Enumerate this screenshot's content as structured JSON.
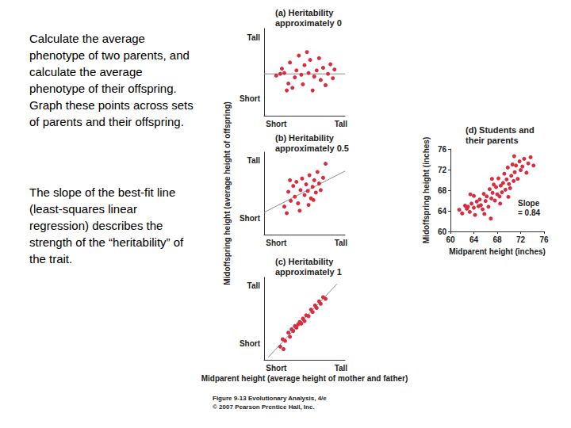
{
  "text": {
    "paragraphs": [
      "Calculate the average phenotype of two parents, and calculate the average phenotype of their offspring. Graph these points across sets of parents and their offspring.",
      "The slope of the best-fit line (least-squares linear regression) describes the strength of the “heritability” of the trait."
    ]
  },
  "chart_data": [
    {
      "type": "scatter",
      "title": "(a) Heritability approximately 0",
      "xlim": [
        0,
        10
      ],
      "ylim": [
        0,
        10
      ],
      "xticks": [
        {
          "value": 1.5,
          "label": "Short"
        },
        {
          "value": 9.5,
          "label": "Tall"
        }
      ],
      "yticks": [
        {
          "value": 2,
          "label": "Short"
        },
        {
          "value": 9,
          "label": "Tall"
        }
      ],
      "grid": false,
      "series": [
        {
          "type": "scatter",
          "color": "#d92d3f",
          "marker": "circle",
          "values": [
            [
              1.5,
              4.6
            ],
            [
              2,
              4.8
            ],
            [
              2.5,
              4.9
            ],
            [
              2.2,
              5.4
            ],
            [
              3,
              3.7
            ],
            [
              3.2,
              6.1
            ],
            [
              3.8,
              4.4
            ],
            [
              4,
              5.2
            ],
            [
              4.3,
              6.9
            ],
            [
              4.6,
              4.7
            ],
            [
              4.8,
              3.6
            ],
            [
              5,
              5.8
            ],
            [
              5.3,
              7.3
            ],
            [
              5.5,
              4.9
            ],
            [
              5.7,
              6.4
            ],
            [
              6,
              2.9
            ],
            [
              6.2,
              4.5
            ],
            [
              6.5,
              5.2
            ],
            [
              6.8,
              6.6
            ],
            [
              7,
              4.1
            ],
            [
              7.3,
              5.5
            ],
            [
              7.6,
              3.5
            ],
            [
              7.9,
              4.8
            ],
            [
              8.2,
              5.9
            ],
            [
              8.5,
              4.3
            ],
            [
              2.8,
              2.9
            ],
            [
              3.5,
              3.2
            ],
            [
              8.7,
              5.3
            ]
          ]
        },
        {
          "type": "line",
          "color": "#8c8c8c",
          "line_style": "solid",
          "values": [
            [
              0,
              4.8
            ],
            [
              10,
              4.8
            ]
          ]
        }
      ]
    },
    {
      "type": "scatter",
      "title": "(b) Heritability approximately 0.5",
      "ylabel": "Midoffspring height (average height of offspring)",
      "xlim": [
        0,
        10
      ],
      "ylim": [
        0,
        10
      ],
      "xticks": [
        {
          "value": 1.5,
          "label": "Short"
        },
        {
          "value": 9.5,
          "label": "Tall"
        }
      ],
      "yticks": [
        {
          "value": 2,
          "label": "Short"
        },
        {
          "value": 9,
          "label": "Tall"
        }
      ],
      "grid": false,
      "series": [
        {
          "type": "scatter",
          "color": "#d92d3f",
          "marker": "circle",
          "values": [
            [
              2.5,
              3.4
            ],
            [
              3,
              5.2
            ],
            [
              3.3,
              4.1
            ],
            [
              3.6,
              5.9
            ],
            [
              3.8,
              4.6
            ],
            [
              4,
              6.4
            ],
            [
              4.2,
              3.8
            ],
            [
              4.5,
              5.4
            ],
            [
              4.7,
              6.8
            ],
            [
              5,
              4.8
            ],
            [
              5.2,
              6.1
            ],
            [
              5.4,
              5.3
            ],
            [
              5.6,
              7.2
            ],
            [
              5.8,
              4.4
            ],
            [
              6,
              5.8
            ],
            [
              6.2,
              6.6
            ],
            [
              6.4,
              5.1
            ],
            [
              6.6,
              7.6
            ],
            [
              6.8,
              6.2
            ],
            [
              7,
              5.4
            ],
            [
              7.3,
              6.9
            ],
            [
              7.6,
              8.6
            ],
            [
              4.4,
              2.9
            ],
            [
              5.5,
              3.6
            ],
            [
              3.2,
              6.6
            ],
            [
              6.1,
              4.2
            ],
            [
              2.8,
              2.6
            ]
          ]
        },
        {
          "type": "line",
          "color": "#8c8c8c",
          "line_style": "solid",
          "values": [
            [
              0,
              2.7
            ],
            [
              10,
              7.7
            ]
          ]
        }
      ]
    },
    {
      "type": "scatter",
      "title": "(c) Heritability approximately 1",
      "xlabel": "Midparent height (average height of mother and father)",
      "xlim": [
        0,
        10
      ],
      "ylim": [
        0,
        10
      ],
      "xticks": [
        {
          "value": 1.5,
          "label": "Short"
        },
        {
          "value": 9.5,
          "label": "Tall"
        }
      ],
      "yticks": [
        {
          "value": 2,
          "label": "Short"
        },
        {
          "value": 9,
          "label": "Tall"
        }
      ],
      "grid": false,
      "series": [
        {
          "type": "scatter",
          "color": "#d92d3f",
          "marker": "circle",
          "values": [
            [
              2,
              1.6
            ],
            [
              2.3,
              2.5
            ],
            [
              2.6,
              2.3
            ],
            [
              3,
              3.3
            ],
            [
              3.2,
              2.8
            ],
            [
              3.4,
              3.7
            ],
            [
              3.6,
              3.5
            ],
            [
              3.8,
              4.1
            ],
            [
              4,
              3.9
            ],
            [
              4.2,
              4.3
            ],
            [
              4.4,
              4.6
            ],
            [
              4.6,
              4.4
            ],
            [
              4.8,
              5.0
            ],
            [
              5,
              4.7
            ],
            [
              5.2,
              5.4
            ],
            [
              5.5,
              5.3
            ],
            [
              5.8,
              6.1
            ],
            [
              6,
              5.8
            ],
            [
              6.3,
              6.6
            ],
            [
              6.5,
              6.3
            ],
            [
              6.8,
              7.1
            ],
            [
              7,
              6.8
            ],
            [
              7.3,
              7.6
            ],
            [
              7.6,
              7.4
            ],
            [
              2.4,
              1.3
            ]
          ]
        },
        {
          "type": "line",
          "color": "#8c8c8c",
          "line_style": "solid",
          "values": [
            [
              0.5,
              0.3
            ],
            [
              9,
              9.2
            ]
          ]
        }
      ]
    },
    {
      "type": "scatter",
      "title": "(d) Students and their parents",
      "xlabel": "Midparent height (inches)",
      "ylabel": "Midoffspring height (inches)",
      "annotation": "Slope = 0.84",
      "xlim": [
        60,
        76
      ],
      "ylim": [
        60,
        76
      ],
      "xticks": [
        60,
        64,
        68,
        72,
        76
      ],
      "yticks": [
        60,
        64,
        68,
        72,
        76
      ],
      "grid": false,
      "series": [
        {
          "type": "scatter",
          "color": "#d92d3f",
          "marker": "circle",
          "values": [
            [
              61.5,
              64.2
            ],
            [
              62,
              63.5
            ],
            [
              62.5,
              65
            ],
            [
              62.8,
              64.4
            ],
            [
              63,
              64.8
            ],
            [
              63.3,
              63.8
            ],
            [
              63.6,
              65.4
            ],
            [
              64,
              64.6
            ],
            [
              64.2,
              63.2
            ],
            [
              64.5,
              65.8
            ],
            [
              64.8,
              64.9
            ],
            [
              65,
              66.2
            ],
            [
              65.2,
              65.1
            ],
            [
              65.5,
              64.3
            ],
            [
              65.7,
              67.3
            ],
            [
              66,
              65.9
            ],
            [
              66.2,
              66.8
            ],
            [
              66.5,
              64.8
            ],
            [
              66.7,
              68.2
            ],
            [
              67,
              66.4
            ],
            [
              67.2,
              67.5
            ],
            [
              67.4,
              69.1
            ],
            [
              67.6,
              66
            ],
            [
              67.8,
              68.6
            ],
            [
              68,
              67.2
            ],
            [
              68.2,
              70.3
            ],
            [
              68.4,
              66.8
            ],
            [
              68.6,
              68.9
            ],
            [
              68.8,
              67.6
            ],
            [
              69,
              69.4
            ],
            [
              69.2,
              71.2
            ],
            [
              69.4,
              68.1
            ],
            [
              69.6,
              70.1
            ],
            [
              69.8,
              72.4
            ],
            [
              70,
              69.2
            ],
            [
              70.2,
              68.4
            ],
            [
              70.4,
              70.8
            ],
            [
              70.6,
              73
            ],
            [
              70.8,
              69.8
            ],
            [
              71,
              71.5
            ],
            [
              71.2,
              72.8
            ],
            [
              71.5,
              70.2
            ],
            [
              71.8,
              73.6
            ],
            [
              72,
              71.9
            ],
            [
              72.3,
              72.6
            ],
            [
              72.6,
              74.1
            ],
            [
              73,
              71.4
            ],
            [
              73.3,
              73.2
            ],
            [
              73.7,
              74.4
            ],
            [
              74.2,
              72.8
            ],
            [
              66.9,
              62.5
            ],
            [
              65.8,
              63.4
            ],
            [
              68.5,
              65.4
            ],
            [
              64,
              66.9
            ],
            [
              63.4,
              67.2
            ],
            [
              69.9,
              66.7
            ],
            [
              67.1,
              70.2
            ],
            [
              70.9,
              74.6
            ]
          ]
        }
      ]
    }
  ],
  "caption": [
    "Figure 9-13 Evolutionary Analysis, 4/e",
    "© 2007 Pearson Prentice Hall, Inc."
  ]
}
